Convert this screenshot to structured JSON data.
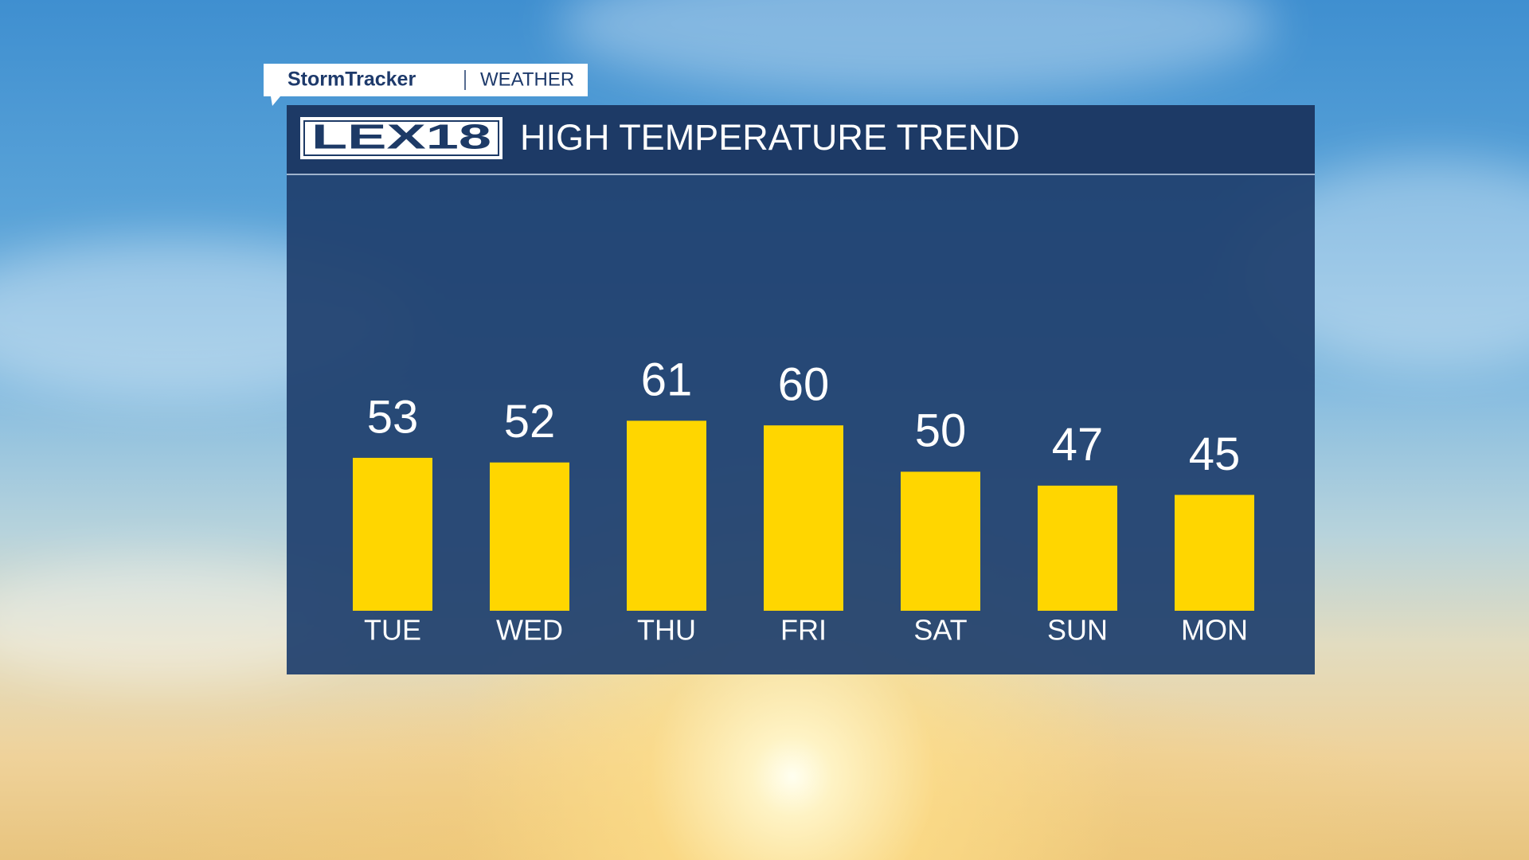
{
  "header": {
    "tab": "StormTracker",
    "section": "WEATHER",
    "logo": "LEX18"
  },
  "chart_data": {
    "type": "bar",
    "title": "HIGH TEMPERATURE TREND",
    "categories": [
      "TUE",
      "WED",
      "THU",
      "FRI",
      "SAT",
      "SUN",
      "MON"
    ],
    "values": [
      53,
      52,
      61,
      60,
      50,
      47,
      45
    ],
    "color": "#ffd600",
    "ylim": [
      20,
      70
    ]
  }
}
